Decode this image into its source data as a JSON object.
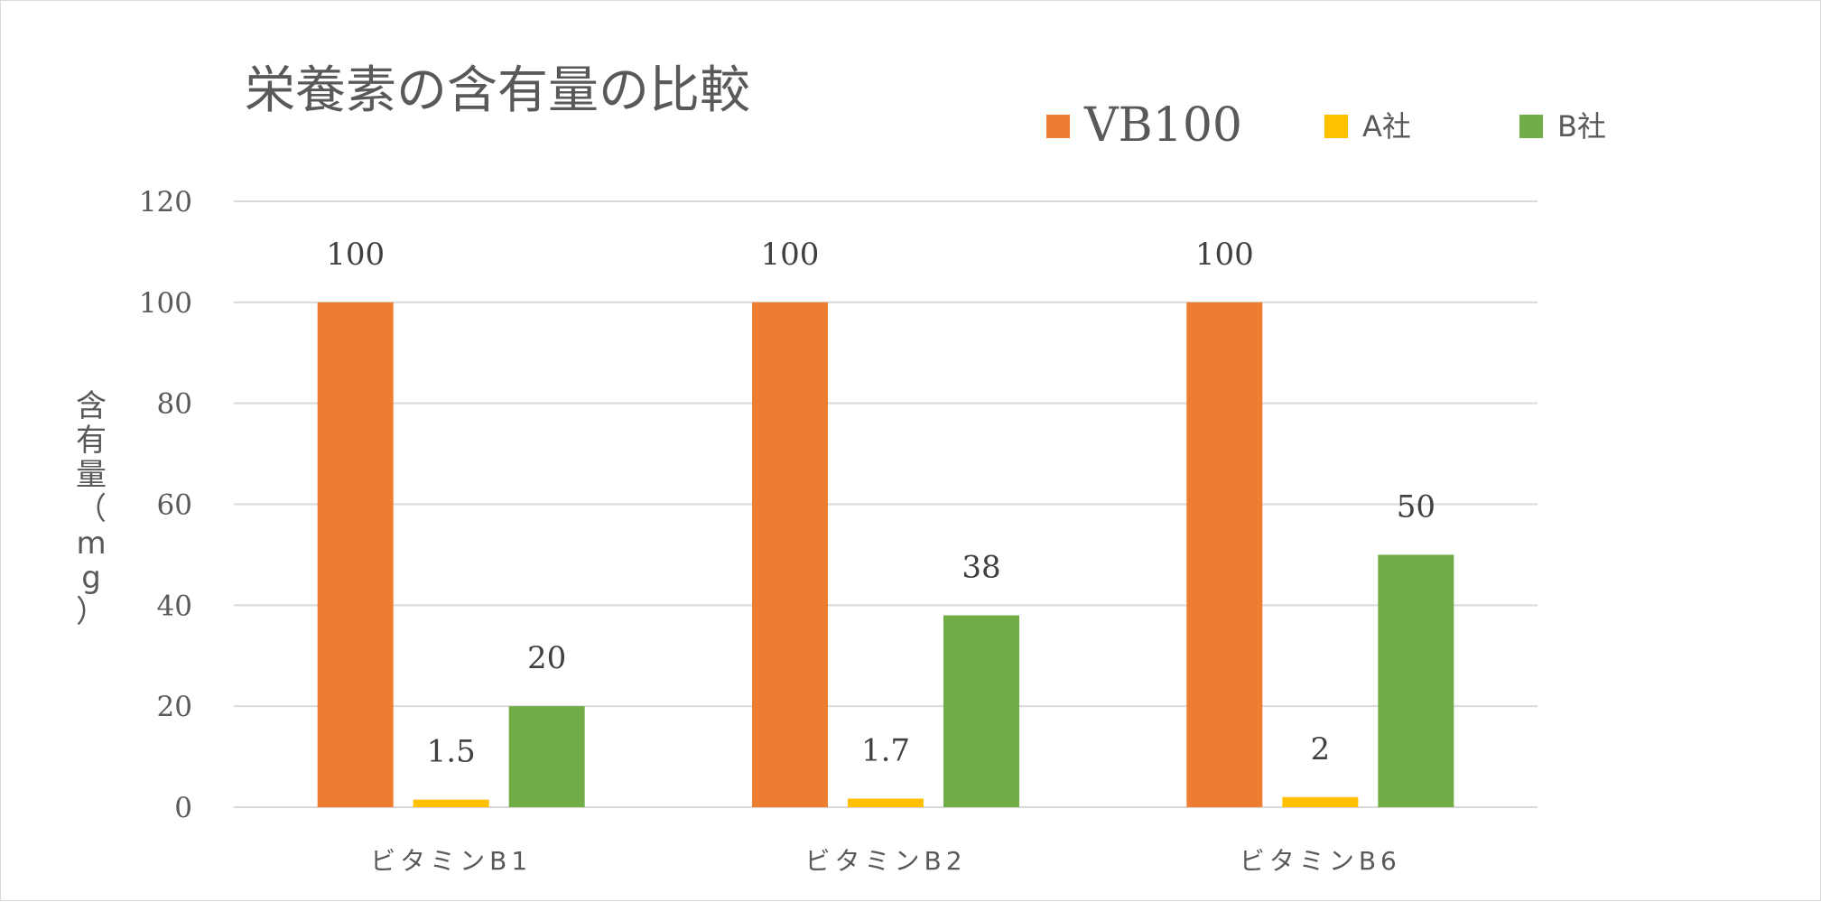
{
  "chart_data": {
    "type": "bar",
    "title": "栄養素の含有量の比較",
    "ylabel": "含有量（mg）",
    "xlabel": "",
    "categories": [
      "ビタミンB1",
      "ビタミンB2",
      "ビタミンB6"
    ],
    "series": [
      {
        "name": "VB100",
        "color": "#ED7D31",
        "values": [
          100,
          100,
          100
        ],
        "labels": [
          "100",
          "100",
          "100"
        ]
      },
      {
        "name": "A社",
        "color": "#FFC000",
        "values": [
          1.5,
          1.7,
          2
        ],
        "labels": [
          "1.5",
          "1.7",
          "2"
        ]
      },
      {
        "name": "B社",
        "color": "#70AD47",
        "values": [
          20,
          38,
          50
        ],
        "labels": [
          "20",
          "38",
          "50"
        ]
      }
    ],
    "ylim": [
      0,
      120
    ],
    "yticks": [
      0,
      20,
      40,
      60,
      80,
      100,
      120
    ],
    "grid": true,
    "legend_position": "top-right"
  }
}
